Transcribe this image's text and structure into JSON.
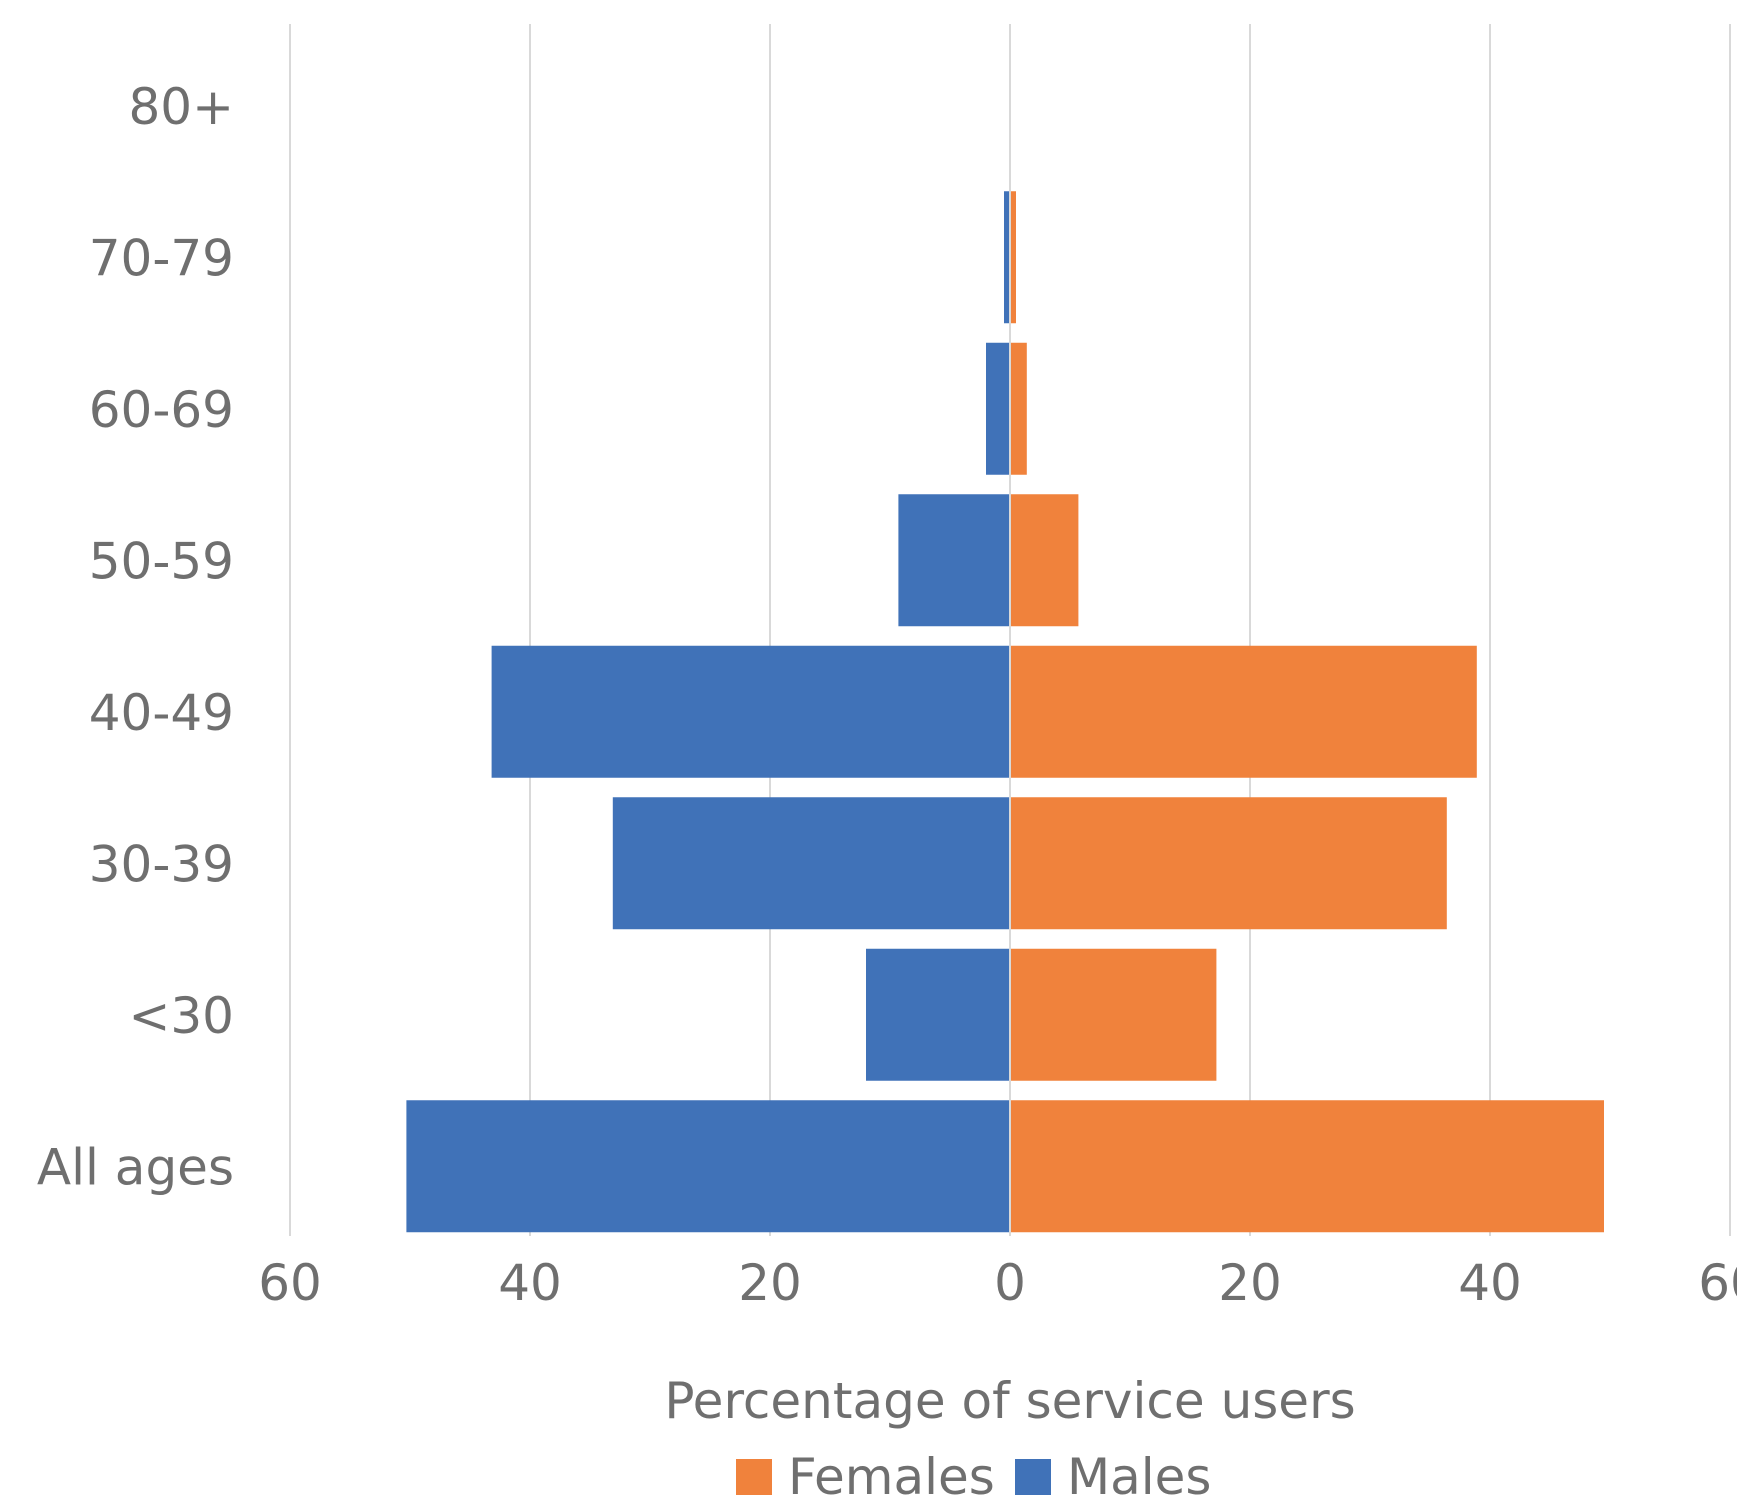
{
  "chart_data": {
    "type": "bar",
    "orientation": "horizontal",
    "layout": "population-pyramid",
    "categories": [
      "80+",
      "70-79",
      "60-69",
      "50-59",
      "40-49",
      "30-39",
      "<30",
      "All ages"
    ],
    "series": [
      {
        "name": "Males",
        "side": "left",
        "color": "#4072b8",
        "values": [
          0,
          0.5,
          2,
          9.3,
          43.2,
          33.1,
          12,
          50.3
        ]
      },
      {
        "name": "Females",
        "side": "right",
        "color": "#f0823c",
        "values": [
          0,
          0.5,
          1.4,
          5.7,
          38.9,
          36.4,
          17.2,
          49.5
        ]
      }
    ],
    "xlabel": "Percentage of service users",
    "xlim": [
      -60,
      60
    ],
    "xticks": [
      -60,
      -40,
      -20,
      0,
      20,
      40,
      60
    ],
    "xtick_labels": [
      "60",
      "40",
      "20",
      "0",
      "20",
      "40",
      "60"
    ],
    "legend": {
      "position": "bottom",
      "entries": [
        {
          "label": "Females",
          "color": "#f0823c"
        },
        {
          "label": "Males",
          "color": "#4072b8"
        }
      ]
    },
    "grid": true
  }
}
